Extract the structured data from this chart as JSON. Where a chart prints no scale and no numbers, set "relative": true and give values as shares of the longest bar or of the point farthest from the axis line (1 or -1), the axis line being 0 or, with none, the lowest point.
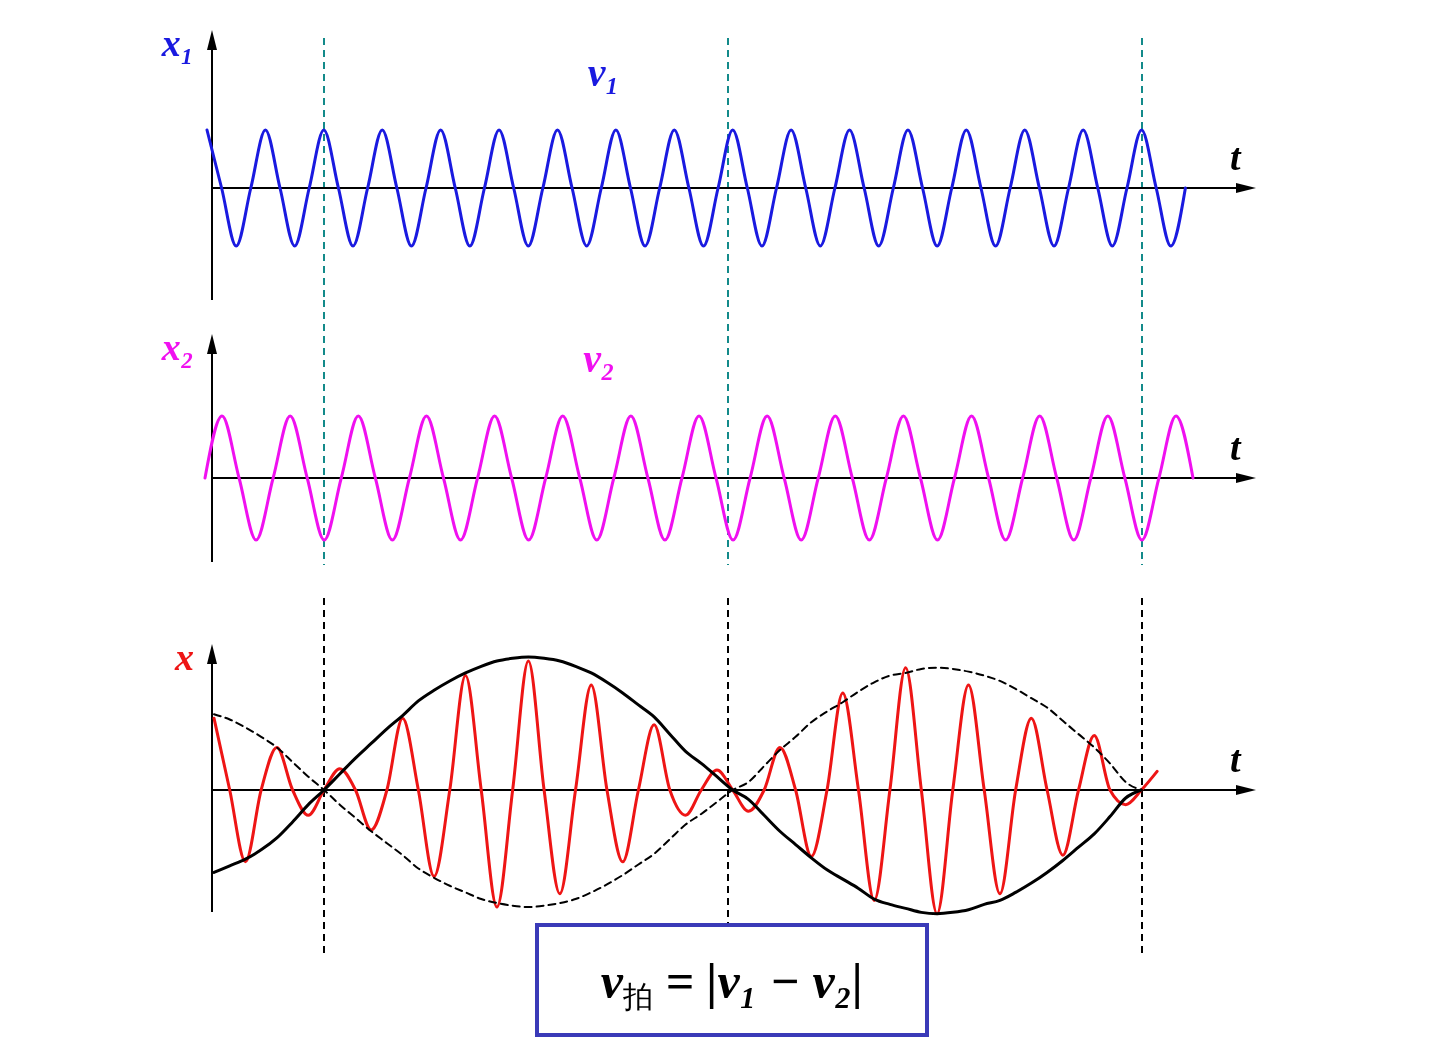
{
  "chart_data": [
    {
      "type": "line",
      "relative": true,
      "ylabel": "x₁",
      "xlabel": "t",
      "categories": [
        null,
        null,
        null,
        null,
        null,
        null,
        null,
        null,
        null,
        null,
        null,
        null,
        null,
        null,
        null,
        null,
        null,
        null,
        null,
        null,
        null,
        null,
        null,
        null,
        null,
        null,
        null,
        null,
        null,
        null,
        null,
        null,
        null,
        null,
        null,
        null,
        null,
        null,
        null,
        null,
        null,
        null,
        null,
        null,
        null,
        null,
        null,
        null,
        null,
        null,
        null,
        null,
        null,
        null,
        null,
        null,
        null,
        null,
        null,
        null,
        null,
        null,
        null,
        null,
        null,
        null,
        null,
        null,
        null
      ],
      "series": [
        {
          "name": "ν₁",
          "color": "#1a1ae0",
          "values": [
            1,
            0,
            -1,
            0,
            1,
            0,
            -1,
            0,
            1,
            0,
            -1,
            0,
            1,
            0,
            -1,
            0,
            1,
            0,
            -1,
            0,
            1,
            0,
            -1,
            0,
            1,
            0,
            -1,
            0,
            1,
            0,
            -1,
            0,
            1,
            0,
            -1,
            0,
            1,
            0,
            -1,
            0,
            1,
            0,
            -1,
            0,
            1,
            0,
            -1,
            0,
            1,
            0,
            -1,
            0,
            1,
            0,
            -1,
            0,
            1,
            0,
            -1,
            0,
            1,
            0,
            -1,
            0,
            1,
            0,
            -1,
            0,
            null
          ]
        }
      ],
      "line_style": "solid"
    },
    {
      "type": "line",
      "relative": true,
      "ylabel": "x₂",
      "xlabel": "t",
      "categories": [
        null,
        null,
        null,
        null,
        null,
        null,
        null,
        null,
        null,
        null,
        null,
        null,
        null,
        null,
        null,
        null,
        null,
        null,
        null,
        null,
        null,
        null,
        null,
        null,
        null,
        null,
        null,
        null,
        null,
        null,
        null,
        null,
        null,
        null,
        null,
        null,
        null,
        null,
        null,
        null,
        null,
        null,
        null,
        null,
        null,
        null,
        null,
        null,
        null,
        null,
        null,
        null,
        null,
        null,
        null,
        null,
        null,
        null,
        null
      ],
      "series": [
        {
          "name": "ν₂",
          "color": "#f010f0",
          "values": [
            0,
            1,
            0,
            -1,
            0,
            1,
            0,
            -1,
            0,
            1,
            0,
            -1,
            0,
            1,
            0,
            -1,
            0,
            1,
            0,
            -1,
            0,
            1,
            0,
            -1,
            0,
            1,
            0,
            -1,
            0,
            1,
            0,
            -1,
            0,
            1,
            0,
            -1,
            0,
            1,
            0,
            -1,
            0,
            1,
            0,
            -1,
            0,
            1,
            0,
            -1,
            0,
            1,
            0,
            -1,
            0,
            1,
            0,
            -1,
            0,
            1,
            0
          ]
        }
      ],
      "line_style": "solid"
    },
    {
      "type": "line",
      "relative": true,
      "ylabel": "x",
      "xlabel": "t",
      "categories": [
        null,
        null,
        null,
        null,
        null,
        null,
        null,
        null,
        null,
        null,
        null,
        null,
        null,
        null,
        null,
        null,
        null,
        null,
        null,
        null,
        null,
        null,
        null,
        null,
        null,
        null,
        null,
        null,
        null,
        null,
        null,
        null,
        null,
        null,
        null,
        null,
        null,
        null,
        null,
        null,
        null,
        null,
        null,
        null,
        null,
        null,
        null,
        null,
        null,
        null,
        null,
        null,
        null,
        null,
        null,
        null,
        null,
        null,
        null,
        null,
        null,
        null,
        null,
        null,
        null
      ],
      "series": [
        {
          "color": "#ee1515",
          "values": [
            0.54,
            0,
            -0.54,
            0,
            0.32,
            0,
            -0.19,
            0,
            0.16,
            0,
            -0.3,
            0,
            0.54,
            0,
            -0.65,
            0,
            0.86,
            0,
            -0.88,
            0,
            0.97,
            0,
            -0.78,
            0,
            0.79,
            0,
            -0.54,
            0,
            0.49,
            0,
            -0.19,
            0,
            0.15,
            0,
            -0.16,
            0,
            0.32,
            0,
            -0.5,
            0,
            0.73,
            0,
            -0.83,
            0,
            0.92,
            0,
            -0.93,
            0,
            0.79,
            0,
            -0.78,
            0,
            0.54,
            0,
            -0.49,
            0,
            0.41,
            0,
            -0.11,
            0,
            0.14,
            null,
            null,
            null,
            null
          ]
        },
        {
          "color": "#000000",
          "line_style": "solid",
          "values": [
            -0.62,
            -0.57,
            -0.52,
            -0.45,
            -0.36,
            -0.24,
            -0.11,
            0,
            0.12,
            0.24,
            0.35,
            0.46,
            0.56,
            0.67,
            0.75,
            0.82,
            0.88,
            0.93,
            0.97,
            0.99,
            1,
            0.99,
            0.97,
            0.93,
            0.88,
            0.81,
            0.73,
            0.64,
            0.55,
            0.42,
            0.29,
            0.2,
            0.1,
            0,
            -0.07,
            -0.19,
            -0.31,
            -0.41,
            -0.51,
            -0.6,
            -0.67,
            -0.74,
            -0.82,
            -0.86,
            -0.89,
            -0.92,
            -0.93,
            -0.92,
            -0.9,
            -0.86,
            -0.83,
            -0.77,
            -0.7,
            -0.62,
            -0.53,
            -0.43,
            -0.33,
            -0.2,
            -0.06,
            0,
            null,
            null,
            null,
            null,
            null
          ]
        },
        {
          "color": "#000000",
          "line_style": "dashed",
          "values": [
            0.57,
            0.53,
            0.47,
            0.4,
            0.32,
            0.21,
            0.1,
            0,
            -0.11,
            -0.21,
            -0.31,
            -0.4,
            -0.49,
            -0.59,
            -0.66,
            -0.72,
            -0.77,
            -0.82,
            -0.85,
            -0.87,
            -0.88,
            -0.87,
            -0.85,
            -0.82,
            -0.77,
            -0.71,
            -0.64,
            -0.56,
            -0.48,
            -0.37,
            -0.26,
            -0.18,
            -0.09,
            0,
            0.06,
            0.18,
            0.3,
            0.4,
            0.51,
            0.59,
            0.66,
            0.74,
            0.81,
            0.86,
            0.88,
            0.91,
            0.92,
            0.91,
            0.89,
            0.86,
            0.82,
            0.76,
            0.69,
            0.62,
            0.52,
            0.42,
            0.32,
            0.2,
            0.06,
            0,
            null,
            null,
            null,
            null,
            null
          ]
        }
      ],
      "line_style": "solid",
      "annotations": [
        "ν$_{拍}$ = |ν₁ − ν₂|"
      ]
    }
  ]
}
